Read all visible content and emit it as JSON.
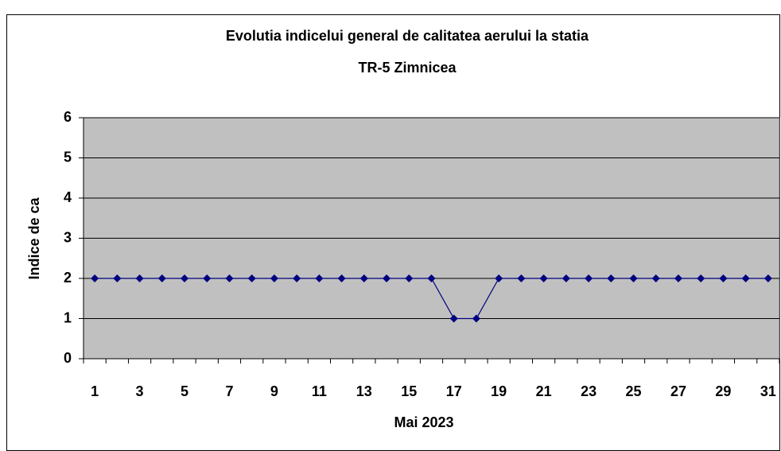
{
  "chart_data": {
    "type": "line",
    "title": [
      "Evolutia indicelui general de calitatea aerului la statia",
      "TR-5 Zimnicea"
    ],
    "x_label": "Mai 2023",
    "y_label": "Indice de ca",
    "categories": [
      "1",
      null,
      "3",
      null,
      "5",
      null,
      "7",
      null,
      "9",
      null,
      "11",
      null,
      "13",
      null,
      "15",
      null,
      "17",
      null,
      "19",
      null,
      "21",
      null,
      "23",
      null,
      "25",
      null,
      "27",
      null,
      "29",
      null,
      "31"
    ],
    "series": [
      {
        "name": "Indice de ca",
        "color": "#000080",
        "values": [
          2,
          2,
          2,
          2,
          2,
          2,
          2,
          2,
          2,
          2,
          2,
          2,
          2,
          2,
          2,
          2,
          1,
          1,
          2,
          2,
          2,
          2,
          2,
          2,
          2,
          2,
          2,
          2,
          2,
          2,
          2
        ]
      }
    ],
    "ylim": [
      0,
      6
    ],
    "yticks": [
      0,
      1,
      2,
      3,
      4,
      5,
      6
    ],
    "grid": true,
    "plot_background": "#c0c0c0"
  }
}
